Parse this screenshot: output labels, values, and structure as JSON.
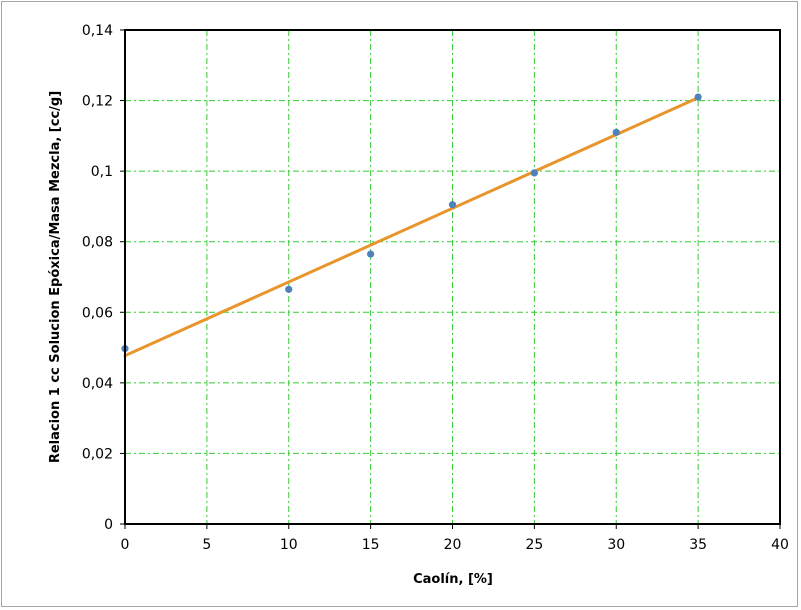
{
  "chart_data": {
    "type": "scatter",
    "title": "",
    "xlabel": "Caolín, [%]",
    "ylabel": "Relacion 1 cc Solucion Epóxica/Masa  Mezcla, [cc/g]",
    "xlim": [
      0,
      40
    ],
    "ylim": [
      0,
      0.14
    ],
    "x_ticks": [
      0,
      5,
      10,
      15,
      20,
      25,
      30,
      35,
      40
    ],
    "x_tick_labels": [
      "0",
      "5",
      "10",
      "15",
      "20",
      "25",
      "30",
      "35",
      "40"
    ],
    "y_ticks": [
      0,
      0.02,
      0.04,
      0.06,
      0.08,
      0.1,
      0.12,
      0.14
    ],
    "y_tick_labels": [
      "0",
      "0,02",
      "0,04",
      "0,06",
      "0,08",
      "0,1",
      "0,12",
      "0,14"
    ],
    "grid": true,
    "legend": "none",
    "series": [
      {
        "kind": "scatter",
        "color": "#4f81bd",
        "x": [
          0,
          10,
          15,
          20,
          25,
          30,
          35
        ],
        "y": [
          0.0497,
          0.0665,
          0.0765,
          0.0905,
          0.0995,
          0.111,
          0.121
        ]
      },
      {
        "kind": "line",
        "color": "#e8952b",
        "x": [
          0,
          35
        ],
        "y": [
          0.0477,
          0.1208
        ]
      }
    ],
    "gridline_color": "#33cc33",
    "axis_color": "#000000"
  }
}
